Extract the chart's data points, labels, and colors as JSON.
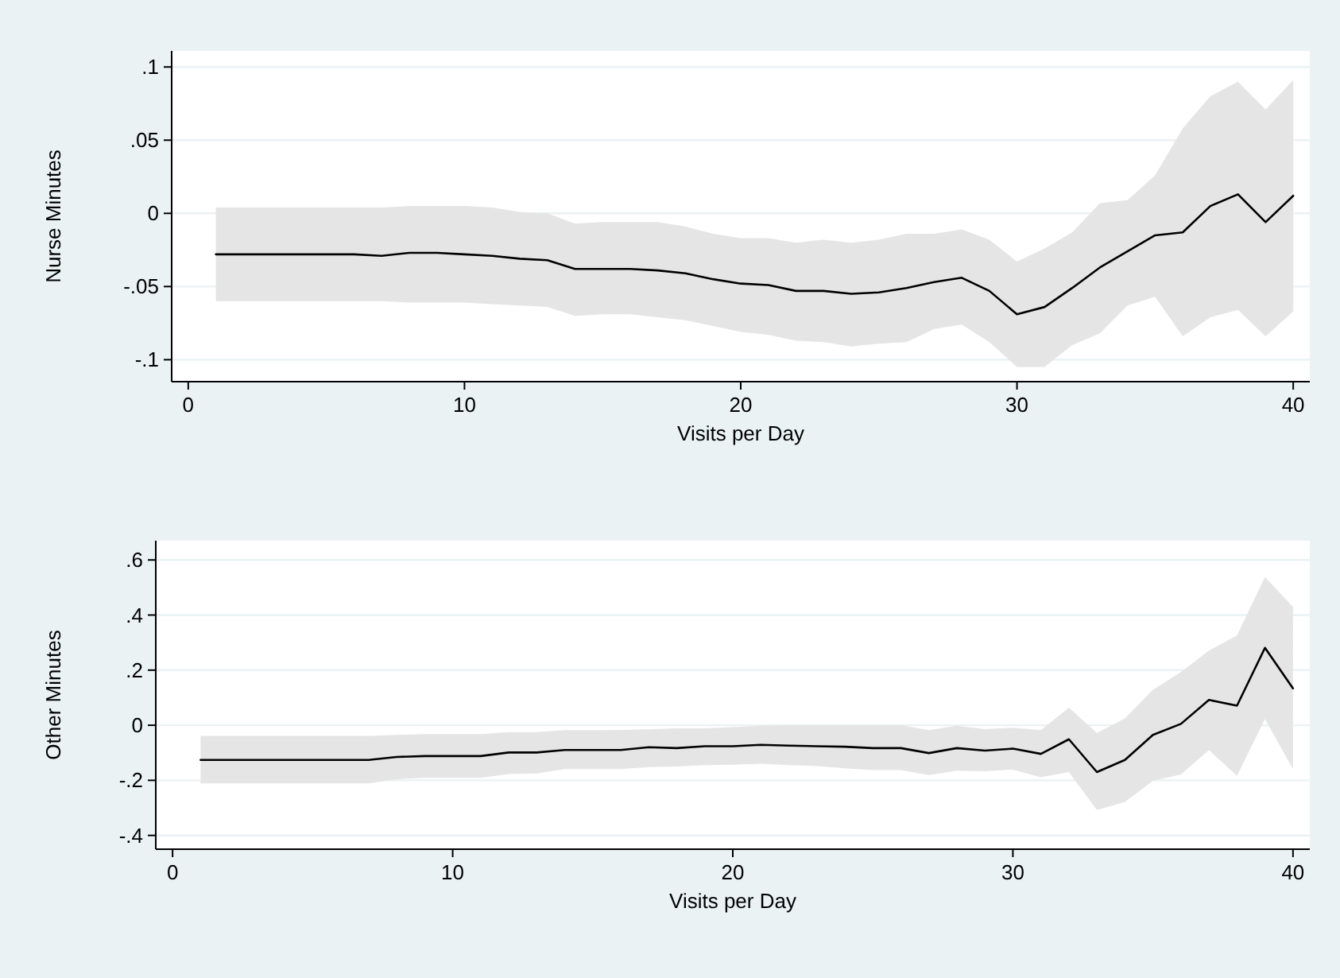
{
  "chart_data": [
    {
      "type": "line",
      "xlabel": "Visits per Day",
      "ylabel": "Nurse Minutes",
      "x": [
        1,
        2,
        3,
        4,
        5,
        6,
        7,
        8,
        9,
        10,
        11,
        12,
        13,
        14,
        15,
        16,
        17,
        18,
        19,
        20,
        21,
        22,
        23,
        24,
        25,
        26,
        27,
        28,
        29,
        30,
        31,
        32,
        33,
        34,
        35,
        36,
        37,
        38,
        39,
        40
      ],
      "xlim": [
        -0.6,
        40.6
      ],
      "xticks": [
        0,
        10,
        20,
        30,
        40
      ],
      "ylim": [
        -0.115,
        0.111
      ],
      "yticks": [
        {
          "value": -0.1,
          "label": "-.1"
        },
        {
          "value": -0.05,
          "label": "-.05"
        },
        0,
        {
          "value": 0.05,
          "label": ".05"
        },
        {
          "value": 0.1,
          "label": ".1"
        }
      ],
      "grid": "y",
      "series": [
        {
          "color": "#000000",
          "values": [
            -0.028,
            -0.028,
            -0.028,
            -0.028,
            -0.028,
            -0.028,
            -0.029,
            -0.027,
            -0.027,
            -0.028,
            -0.029,
            -0.031,
            -0.032,
            -0.038,
            -0.038,
            -0.038,
            -0.039,
            -0.041,
            -0.045,
            -0.048,
            -0.049,
            -0.053,
            -0.053,
            -0.055,
            -0.054,
            -0.051,
            -0.047,
            -0.044,
            -0.053,
            -0.069,
            -0.064,
            -0.051,
            -0.037,
            -0.026,
            -0.015,
            -0.013,
            0.005,
            0.013,
            -0.006,
            0.012
          ],
          "upper": [
            0.004,
            0.004,
            0.004,
            0.004,
            0.004,
            0.004,
            0.004,
            0.005,
            0.005,
            0.005,
            0.004,
            0.001,
            0.0,
            -0.007,
            -0.006,
            -0.006,
            -0.006,
            -0.009,
            -0.014,
            -0.017,
            -0.017,
            -0.02,
            -0.018,
            -0.02,
            -0.018,
            -0.014,
            -0.014,
            -0.011,
            -0.018,
            -0.033,
            -0.024,
            -0.013,
            0.007,
            0.009,
            0.026,
            0.058,
            0.08,
            0.09,
            0.071,
            0.091
          ],
          "lower": [
            -0.06,
            -0.06,
            -0.06,
            -0.06,
            -0.06,
            -0.06,
            -0.06,
            -0.061,
            -0.061,
            -0.061,
            -0.062,
            -0.063,
            -0.064,
            -0.07,
            -0.069,
            -0.069,
            -0.071,
            -0.073,
            -0.077,
            -0.081,
            -0.083,
            -0.087,
            -0.088,
            -0.091,
            -0.089,
            -0.088,
            -0.079,
            -0.076,
            -0.088,
            -0.105,
            -0.105,
            -0.09,
            -0.082,
            -0.063,
            -0.057,
            -0.084,
            -0.071,
            -0.066,
            -0.084,
            -0.067
          ]
        }
      ]
    },
    {
      "type": "line",
      "xlabel": "Visits per Day",
      "ylabel": "Other Minutes",
      "x": [
        1,
        2,
        3,
        4,
        5,
        6,
        7,
        8,
        9,
        10,
        11,
        12,
        13,
        14,
        15,
        16,
        17,
        18,
        19,
        20,
        21,
        22,
        23,
        24,
        25,
        26,
        27,
        28,
        29,
        30,
        31,
        32,
        33,
        34,
        35,
        36,
        37,
        38,
        39,
        40
      ],
      "xlim": [
        -0.6,
        40.6
      ],
      "xticks": [
        0,
        10,
        20,
        30,
        40
      ],
      "ylim": [
        -0.45,
        0.67
      ],
      "yticks": [
        {
          "value": -0.4,
          "label": "-.4"
        },
        {
          "value": -0.2,
          "label": "-.2"
        },
        0,
        {
          "value": 0.2,
          "label": ".2"
        },
        {
          "value": 0.4,
          "label": ".4"
        },
        {
          "value": 0.6,
          "label": ".6"
        }
      ],
      "grid": "y",
      "series": [
        {
          "color": "#000000",
          "values": [
            -0.126,
            -0.126,
            -0.126,
            -0.126,
            -0.126,
            -0.126,
            -0.126,
            -0.115,
            -0.112,
            -0.112,
            -0.112,
            -0.099,
            -0.099,
            -0.09,
            -0.09,
            -0.09,
            -0.08,
            -0.083,
            -0.076,
            -0.076,
            -0.071,
            -0.074,
            -0.076,
            -0.078,
            -0.083,
            -0.083,
            -0.101,
            -0.083,
            -0.092,
            -0.085,
            -0.104,
            -0.051,
            -0.17,
            -0.126,
            -0.035,
            0.005,
            0.092,
            0.071,
            0.281,
            0.134
          ],
          "upper": [
            -0.039,
            -0.039,
            -0.039,
            -0.039,
            -0.039,
            -0.039,
            -0.039,
            -0.035,
            -0.032,
            -0.032,
            -0.032,
            -0.025,
            -0.025,
            -0.018,
            -0.018,
            -0.017,
            -0.015,
            -0.011,
            -0.011,
            -0.007,
            -0.002,
            0.0,
            0.0,
            0.0,
            0.0,
            0.0,
            -0.018,
            -0.002,
            -0.014,
            -0.009,
            -0.018,
            0.064,
            -0.028,
            0.025,
            0.129,
            0.193,
            0.271,
            0.326,
            0.538,
            0.43
          ],
          "lower": [
            -0.211,
            -0.211,
            -0.211,
            -0.211,
            -0.211,
            -0.211,
            -0.211,
            -0.196,
            -0.191,
            -0.191,
            -0.191,
            -0.177,
            -0.175,
            -0.159,
            -0.159,
            -0.159,
            -0.152,
            -0.15,
            -0.145,
            -0.143,
            -0.14,
            -0.145,
            -0.148,
            -0.156,
            -0.163,
            -0.163,
            -0.181,
            -0.165,
            -0.167,
            -0.161,
            -0.189,
            -0.17,
            -0.308,
            -0.278,
            -0.202,
            -0.179,
            -0.09,
            -0.184,
            0.023,
            -0.159
          ]
        }
      ]
    }
  ]
}
